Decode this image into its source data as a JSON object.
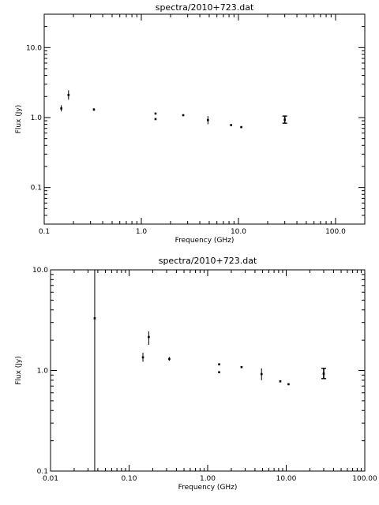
{
  "chart_data": [
    {
      "type": "scatter",
      "title": "spectra/2010+723.dat",
      "xlabel": "Frequency (GHz)",
      "ylabel": "Flux (Jy)",
      "xscale": "log",
      "yscale": "log",
      "xlim": [
        0.1,
        200
      ],
      "ylim": [
        0.03,
        30
      ],
      "xticks": [
        0.1,
        1.0,
        10.0,
        100.0
      ],
      "xtick_labels": [
        "0.1",
        "1.0",
        "10.0",
        "100.0"
      ],
      "yticks": [
        0.1,
        1.0,
        10.0
      ],
      "ytick_labels": [
        "0.1",
        "1.0",
        "10.0"
      ],
      "points": [
        {
          "x": 0.15,
          "y": 1.35,
          "lo": 1.22,
          "hi": 1.5
        },
        {
          "x": 0.178,
          "y": 2.1,
          "lo": 1.8,
          "hi": 2.45
        },
        {
          "x": 0.325,
          "y": 1.3,
          "lo": 1.25,
          "hi": 1.36
        },
        {
          "x": 1.4,
          "y": 0.95,
          "lo": 0.95,
          "hi": 0.95
        },
        {
          "x": 1.4,
          "y": 1.14,
          "lo": 1.14,
          "hi": 1.14
        },
        {
          "x": 2.7,
          "y": 1.08,
          "lo": 1.08,
          "hi": 1.08
        },
        {
          "x": 4.85,
          "y": 0.92,
          "lo": 0.8,
          "hi": 1.05
        },
        {
          "x": 8.4,
          "y": 0.78,
          "lo": 0.78,
          "hi": 0.78
        },
        {
          "x": 10.7,
          "y": 0.73,
          "lo": 0.73,
          "hi": 0.73
        },
        {
          "x": 30,
          "y": 0.93,
          "lo": 0.83,
          "hi": 1.05,
          "cap": true
        }
      ]
    },
    {
      "type": "scatter",
      "title": "spectra/2010+723.dat",
      "xlabel": "Frequency (GHz)",
      "ylabel": "Flux (Jy)",
      "xscale": "log",
      "yscale": "log",
      "xlim": [
        0.01,
        100
      ],
      "ylim": [
        0.1,
        10
      ],
      "xticks": [
        0.01,
        0.1,
        1.0,
        10.0,
        100.0
      ],
      "xtick_labels": [
        "0.01",
        "0.10",
        "1.00",
        "10.00",
        "100.00"
      ],
      "yticks": [
        0.1,
        1.0,
        10.0
      ],
      "ytick_labels": [
        "0.1",
        "1.0",
        "10.0"
      ],
      "points": [
        {
          "x": 0.0365,
          "y": 3.3,
          "lo": 0.1,
          "hi": 10
        },
        {
          "x": 0.15,
          "y": 1.35,
          "lo": 1.22,
          "hi": 1.5
        },
        {
          "x": 0.178,
          "y": 2.15,
          "lo": 1.8,
          "hi": 2.45
        },
        {
          "x": 0.325,
          "y": 1.3,
          "lo": 1.25,
          "hi": 1.36
        },
        {
          "x": 1.4,
          "y": 0.96,
          "lo": 0.96,
          "hi": 0.96
        },
        {
          "x": 1.4,
          "y": 1.15,
          "lo": 1.15,
          "hi": 1.15
        },
        {
          "x": 2.7,
          "y": 1.08,
          "lo": 1.08,
          "hi": 1.08
        },
        {
          "x": 4.85,
          "y": 0.92,
          "lo": 0.8,
          "hi": 1.05
        },
        {
          "x": 8.4,
          "y": 0.78,
          "lo": 0.78,
          "hi": 0.78
        },
        {
          "x": 10.7,
          "y": 0.73,
          "lo": 0.73,
          "hi": 0.73
        },
        {
          "x": 30,
          "y": 0.93,
          "lo": 0.83,
          "hi": 1.05,
          "cap": true
        }
      ]
    }
  ]
}
